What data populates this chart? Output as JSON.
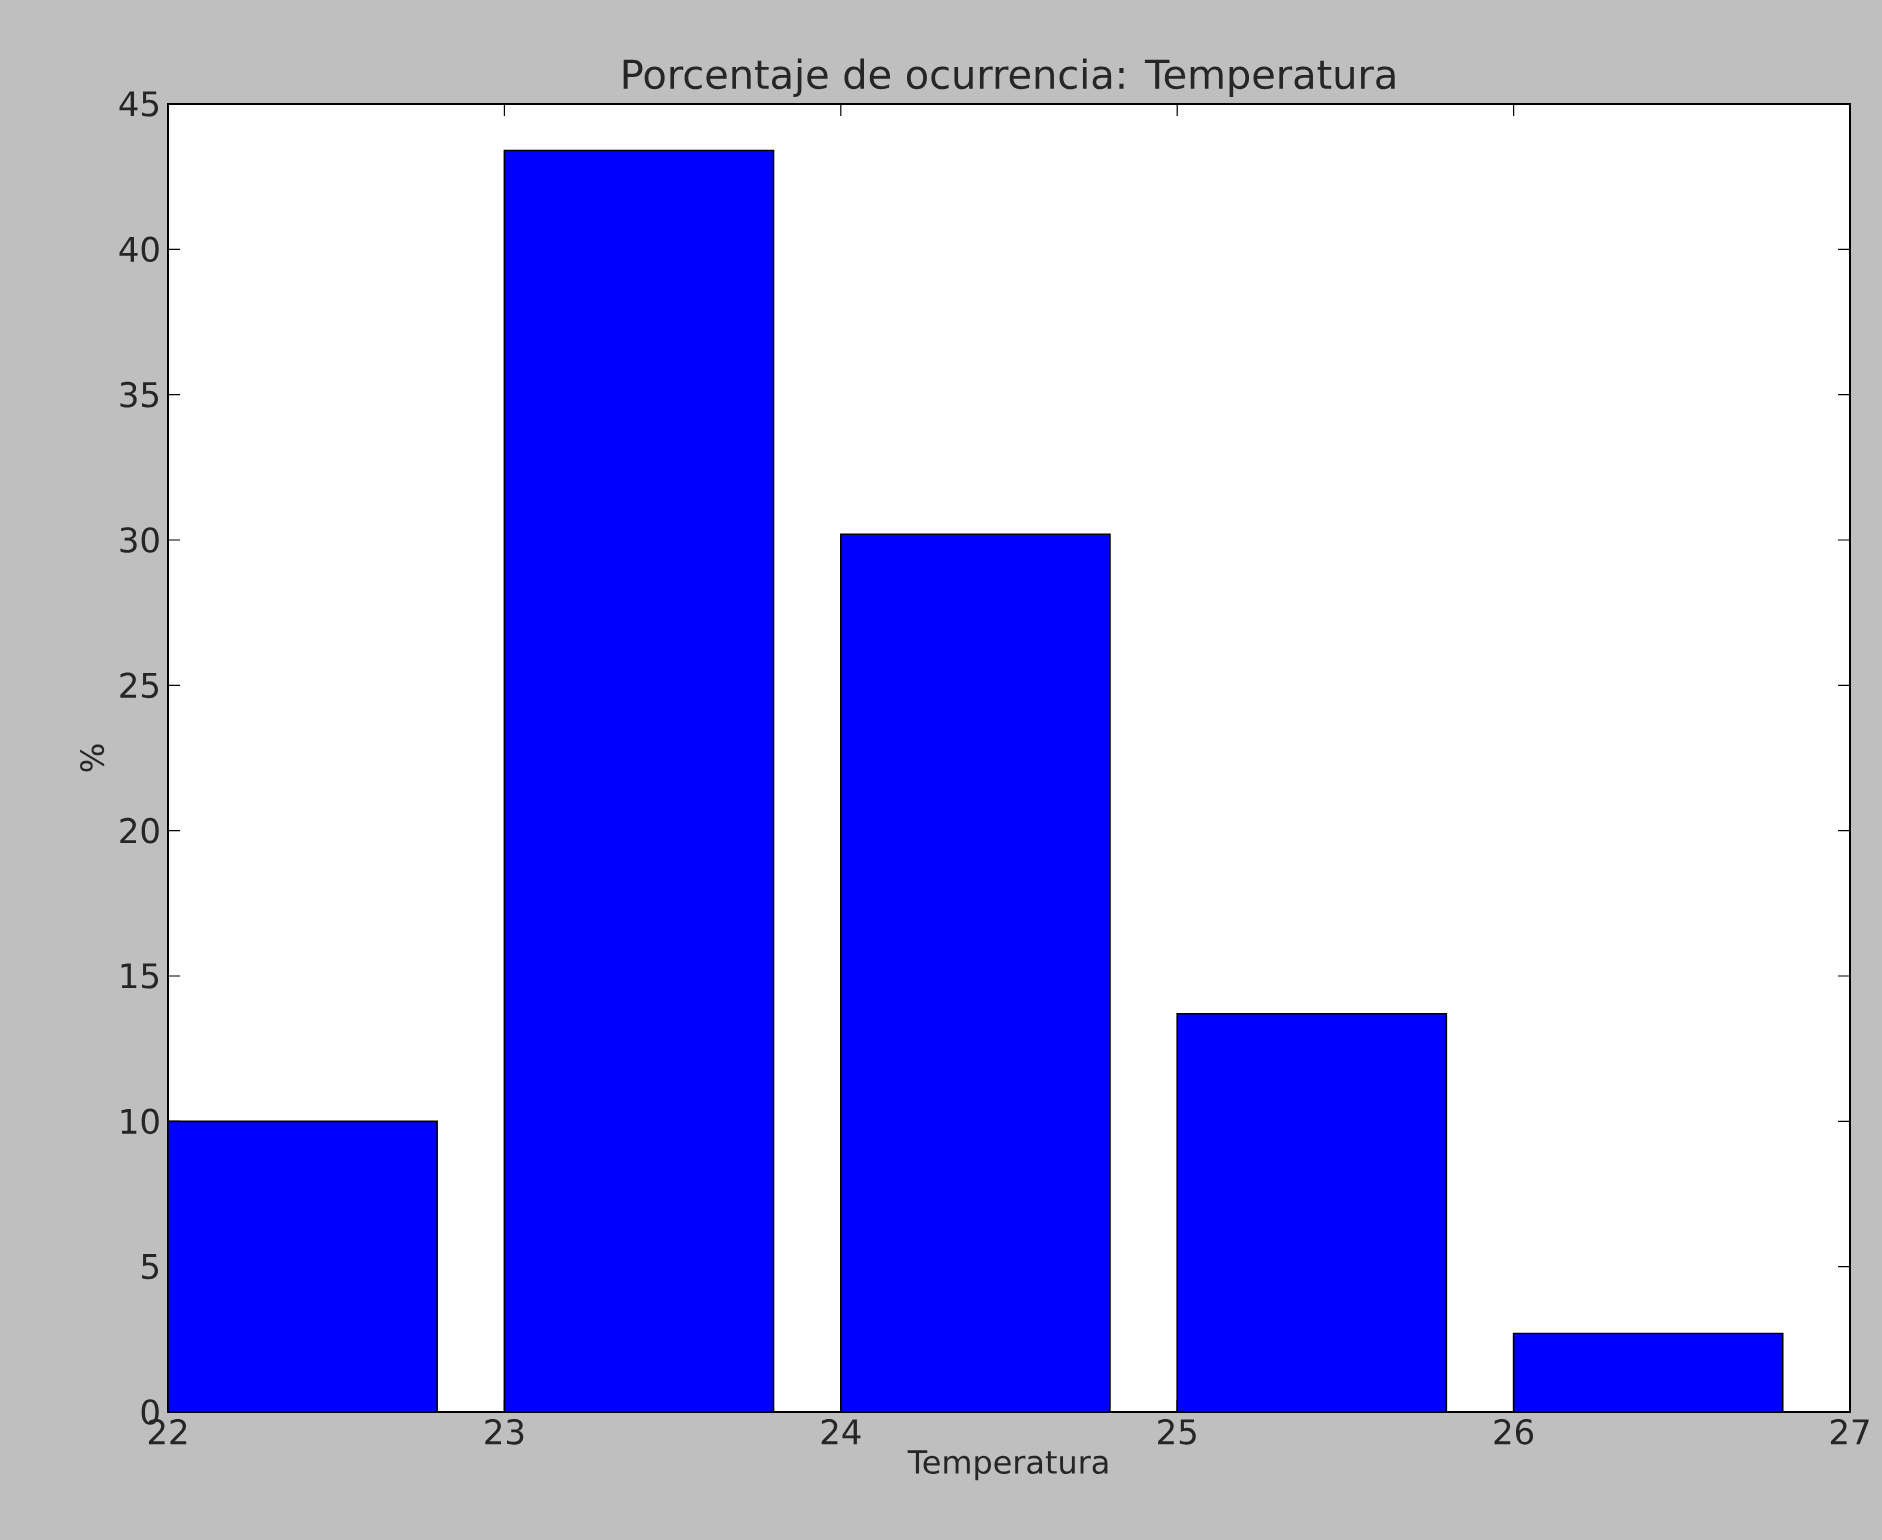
{
  "chart_data": {
    "type": "bar",
    "title": "Porcentaje de ocurrencia: Temperatura",
    "xlabel": "Temperatura",
    "ylabel": "%",
    "x": [
      22.4,
      23.4,
      24.4,
      25.4,
      26.4
    ],
    "values": [
      10.0,
      43.4,
      30.2,
      13.7,
      2.7
    ],
    "color": "#0000ff",
    "xlim": [
      22,
      27
    ],
    "ylim": [
      0,
      45
    ],
    "xticks": [
      22,
      23,
      24,
      25,
      26,
      27
    ],
    "yticks": [
      0,
      5,
      10,
      15,
      20,
      25,
      30,
      35,
      40,
      45
    ]
  }
}
